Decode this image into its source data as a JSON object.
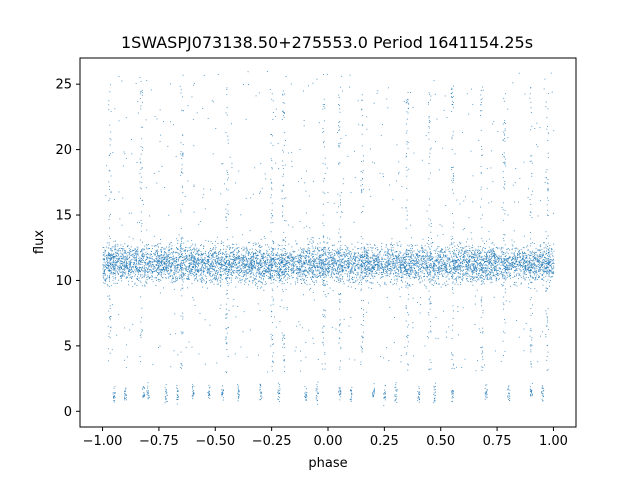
{
  "chart_data": {
    "type": "scatter",
    "title": "1SWASPJ073138.50+275553.0 Period 1641154.25s",
    "xlabel": "phase",
    "ylabel": "flux",
    "xlim": [
      -1.1,
      1.1
    ],
    "ylim": [
      -1.2,
      27.0
    ],
    "xticks": [
      -1.0,
      -0.75,
      -0.5,
      -0.25,
      0.0,
      0.25,
      0.5,
      0.75,
      1.0
    ],
    "xtick_labels": [
      "−1.00",
      "−0.75",
      "−0.50",
      "−0.25",
      "0.00",
      "0.25",
      "0.50",
      "0.75",
      "1.00"
    ],
    "yticks": [
      0,
      5,
      10,
      15,
      20,
      25
    ],
    "ytick_labels": [
      "0",
      "5",
      "10",
      "15",
      "20",
      "25"
    ],
    "grid": false,
    "point_color": "#1f77b4",
    "series": [
      {
        "phase_range": [
          -1.0,
          1.0
        ],
        "main_band": {
          "center": 11.3,
          "spread": 1.3
        },
        "outlier_range": [
          3.0,
          26.0
        ],
        "low_flux_clusters": [
          -0.95,
          -0.9,
          -0.82,
          -0.8,
          -0.72,
          -0.67,
          -0.6,
          -0.53,
          -0.47,
          -0.4,
          -0.3,
          -0.22,
          -0.1,
          -0.05,
          0.05,
          0.1,
          0.2,
          0.25,
          0.3,
          0.4,
          0.47,
          0.55,
          0.7,
          0.8,
          0.9,
          0.95
        ],
        "low_flux_level": 1.4,
        "vertical_streaks": [
          -0.97,
          -0.83,
          -0.65,
          -0.45,
          -0.25,
          -0.2,
          -0.02,
          0.05,
          0.15,
          0.35,
          0.45,
          0.55,
          0.68,
          0.78,
          0.9,
          0.97
        ]
      }
    ]
  }
}
